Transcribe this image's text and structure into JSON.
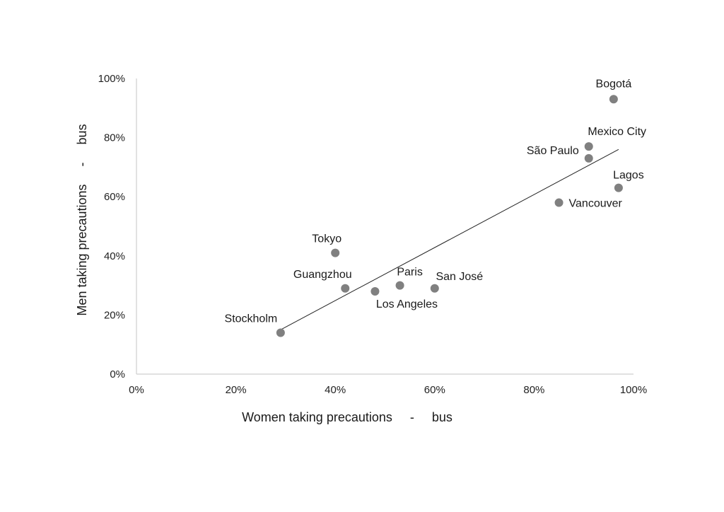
{
  "chart_data": {
    "type": "scatter",
    "xlabel": "Women taking precautions     -     bus",
    "ylabel": "Men taking precautions     -     bus",
    "xlim": [
      0,
      100
    ],
    "ylim": [
      0,
      100
    ],
    "x_ticks": [
      "0%",
      "20%",
      "40%",
      "60%",
      "80%",
      "100%"
    ],
    "y_ticks": [
      "0%",
      "20%",
      "40%",
      "60%",
      "80%",
      "100%"
    ],
    "grid": false,
    "legend": "none",
    "marker_color": "#808080",
    "points": [
      {
        "label": "Bogotá",
        "x": 96,
        "y": 93
      },
      {
        "label": "Mexico City",
        "x": 91,
        "y": 77
      },
      {
        "label": "São Paulo",
        "x": 91,
        "y": 73
      },
      {
        "label": "Lagos",
        "x": 97,
        "y": 63
      },
      {
        "label": "Vancouver",
        "x": 85,
        "y": 58
      },
      {
        "label": "Tokyo",
        "x": 40,
        "y": 41
      },
      {
        "label": "Guangzhou",
        "x": 42,
        "y": 29
      },
      {
        "label": "Paris",
        "x": 53,
        "y": 30
      },
      {
        "label": "San José",
        "x": 60,
        "y": 29
      },
      {
        "label": "Los Angeles",
        "x": 48,
        "y": 28
      },
      {
        "label": "Stockholm",
        "x": 29,
        "y": 14
      }
    ],
    "trendline": {
      "type": "linear",
      "x": [
        29,
        97
      ],
      "y": [
        15,
        76
      ]
    }
  }
}
